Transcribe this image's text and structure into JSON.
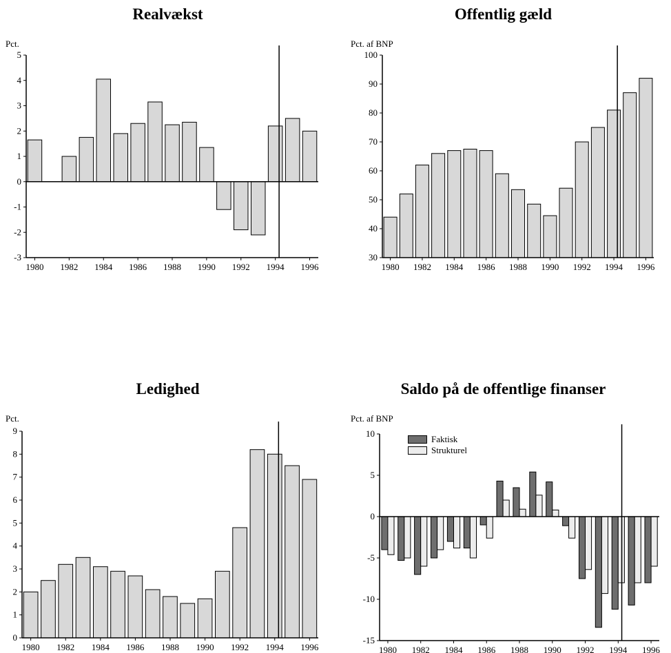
{
  "colors": {
    "bar": "#d8d8d8",
    "bar_dark": "#6e6e6e",
    "bar_light": "#ececec",
    "axis": "#000000"
  },
  "chart_data": [
    {
      "id": "realvaekst",
      "type": "bar",
      "title": "Realvækst",
      "ylabel": "Pct.",
      "ylim": [
        -3,
        5
      ],
      "yticks": [
        -3,
        -2,
        -1,
        0,
        1,
        2,
        3,
        4,
        5
      ],
      "xticks": [
        1980,
        1982,
        1984,
        1986,
        1988,
        1990,
        1992,
        1994,
        1996
      ],
      "categories": [
        1980,
        1981,
        1982,
        1983,
        1984,
        1985,
        1986,
        1987,
        1988,
        1989,
        1990,
        1991,
        1992,
        1993,
        1994,
        1995,
        1996
      ],
      "series": [
        {
          "values": [
            1.65,
            0,
            1.0,
            1.75,
            4.05,
            1.9,
            2.3,
            3.15,
            2.25,
            2.35,
            1.35,
            -1.1,
            -1.9,
            -2.1,
            2.2,
            2.5,
            2.0
          ]
        }
      ],
      "divider_after": 1994
    },
    {
      "id": "offentlig-gaeld",
      "type": "bar",
      "title": "Offentlig gæld",
      "ylabel": "Pct. af BNP",
      "ylim": [
        30,
        100
      ],
      "yticks": [
        30,
        40,
        50,
        60,
        70,
        80,
        90,
        100
      ],
      "xticks": [
        1980,
        1982,
        1984,
        1986,
        1988,
        1990,
        1992,
        1994,
        1996
      ],
      "categories": [
        1980,
        1981,
        1982,
        1983,
        1984,
        1985,
        1986,
        1987,
        1988,
        1989,
        1990,
        1991,
        1992,
        1993,
        1994,
        1995,
        1996
      ],
      "series": [
        {
          "values": [
            44,
            52,
            62,
            66,
            67,
            67.5,
            67,
            59,
            53.5,
            48.5,
            44.5,
            54,
            70,
            75,
            81,
            87,
            92
          ]
        }
      ],
      "divider_after": 1994
    },
    {
      "id": "ledighed",
      "type": "bar",
      "title": "Ledighed",
      "ylabel": "Pct.",
      "ylim": [
        0,
        9
      ],
      "yticks": [
        0,
        1,
        2,
        3,
        4,
        5,
        6,
        7,
        8,
        9
      ],
      "xticks": [
        1980,
        1982,
        1984,
        1986,
        1988,
        1990,
        1992,
        1994,
        1996
      ],
      "categories": [
        1980,
        1981,
        1982,
        1983,
        1984,
        1985,
        1986,
        1987,
        1988,
        1989,
        1990,
        1991,
        1992,
        1993,
        1994,
        1995,
        1996
      ],
      "series": [
        {
          "values": [
            2.0,
            2.5,
            3.2,
            3.5,
            3.1,
            2.9,
            2.7,
            2.1,
            1.8,
            1.5,
            1.7,
            2.9,
            4.8,
            8.2,
            8.0,
            7.5,
            6.9
          ]
        }
      ],
      "divider_after": 1994
    },
    {
      "id": "saldo",
      "type": "bar",
      "title": "Saldo på de offentlige finanser",
      "ylabel": "Pct. af BNP",
      "ylim": [
        -15,
        10
      ],
      "yticks": [
        -15,
        -10,
        -5,
        0,
        5,
        10
      ],
      "xticks": [
        1980,
        1982,
        1984,
        1986,
        1988,
        1990,
        1992,
        1994,
        1996
      ],
      "categories": [
        1980,
        1981,
        1982,
        1983,
        1984,
        1985,
        1986,
        1987,
        1988,
        1989,
        1990,
        1991,
        1992,
        1993,
        1994,
        1995,
        1996
      ],
      "series": [
        {
          "name": "Faktisk",
          "values": [
            -4.0,
            -5.3,
            -7.0,
            -5.0,
            -3.0,
            -3.8,
            -1.0,
            4.3,
            3.5,
            5.4,
            4.2,
            -1.1,
            -7.5,
            -13.4,
            -11.2,
            -10.7,
            -8.0
          ]
        },
        {
          "name": "Strukturel",
          "values": [
            -4.6,
            -5.0,
            -6.0,
            -4.0,
            -3.8,
            -5.0,
            -2.6,
            2.0,
            0.9,
            2.6,
            0.8,
            -2.6,
            -6.4,
            -9.3,
            -8.0,
            -8.0,
            -6.0
          ]
        }
      ],
      "legend_position": "top-left",
      "divider_after": 1994
    }
  ]
}
